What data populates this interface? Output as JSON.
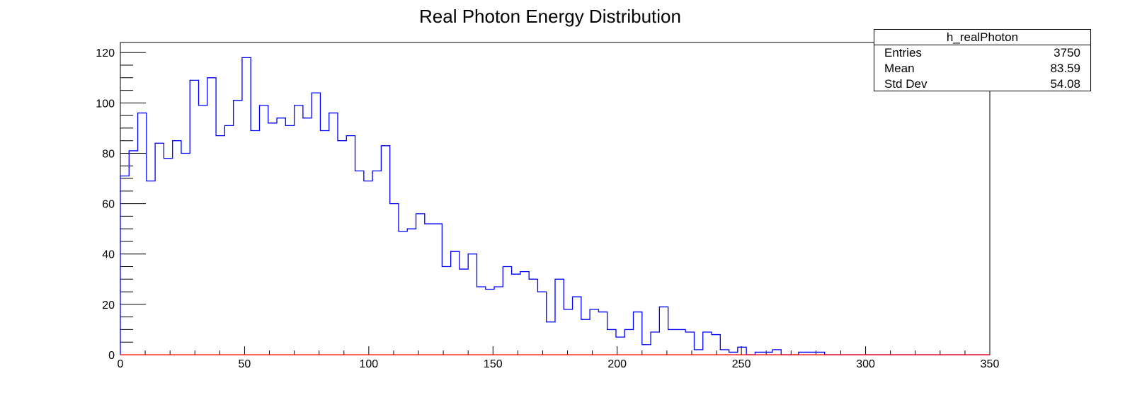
{
  "chart_data": {
    "type": "bar",
    "title": "Real Photon Energy Distribution",
    "xlabel": "",
    "ylabel": "",
    "xlim": [
      0,
      350
    ],
    "ylim": [
      0,
      124
    ],
    "xticks": [
      "0",
      "50",
      "100",
      "150",
      "200",
      "250",
      "300",
      "350"
    ],
    "yticks": [
      "0",
      "20",
      "40",
      "60",
      "80",
      "100",
      "120"
    ],
    "bin_width": 3.5,
    "series": [
      {
        "name": "h_realPhoton",
        "color": "#0000ff",
        "values": [
          71,
          81,
          96,
          69,
          84,
          78,
          85,
          80,
          109,
          99,
          110,
          87,
          91,
          101,
          118,
          89,
          99,
          92,
          94,
          91,
          99,
          94,
          104,
          89,
          96,
          85,
          87,
          73,
          69,
          73,
          83,
          60,
          49,
          50,
          56,
          52,
          52,
          35,
          41,
          34,
          40,
          27,
          26,
          27,
          35,
          32,
          33,
          30,
          25,
          13,
          30,
          18,
          23,
          14,
          18,
          17,
          10,
          7,
          10,
          17,
          4,
          9,
          19,
          10,
          10,
          9,
          2,
          9,
          8,
          2,
          1,
          3,
          0,
          1,
          1,
          2,
          0,
          0,
          1,
          1,
          1,
          0,
          0,
          0,
          0,
          0,
          0,
          0,
          0,
          0,
          0,
          0,
          0,
          0,
          0,
          0,
          0,
          0,
          0,
          0
        ]
      }
    ],
    "baseline_color": "#ff0000",
    "grid": false,
    "legend": "top-right"
  },
  "stats": {
    "title": "h_realPhoton",
    "rows": [
      {
        "label": "Entries",
        "value": "3750"
      },
      {
        "label": "Mean",
        "value": "83.59"
      },
      {
        "label": "Std Dev",
        "value": "54.08"
      }
    ]
  }
}
